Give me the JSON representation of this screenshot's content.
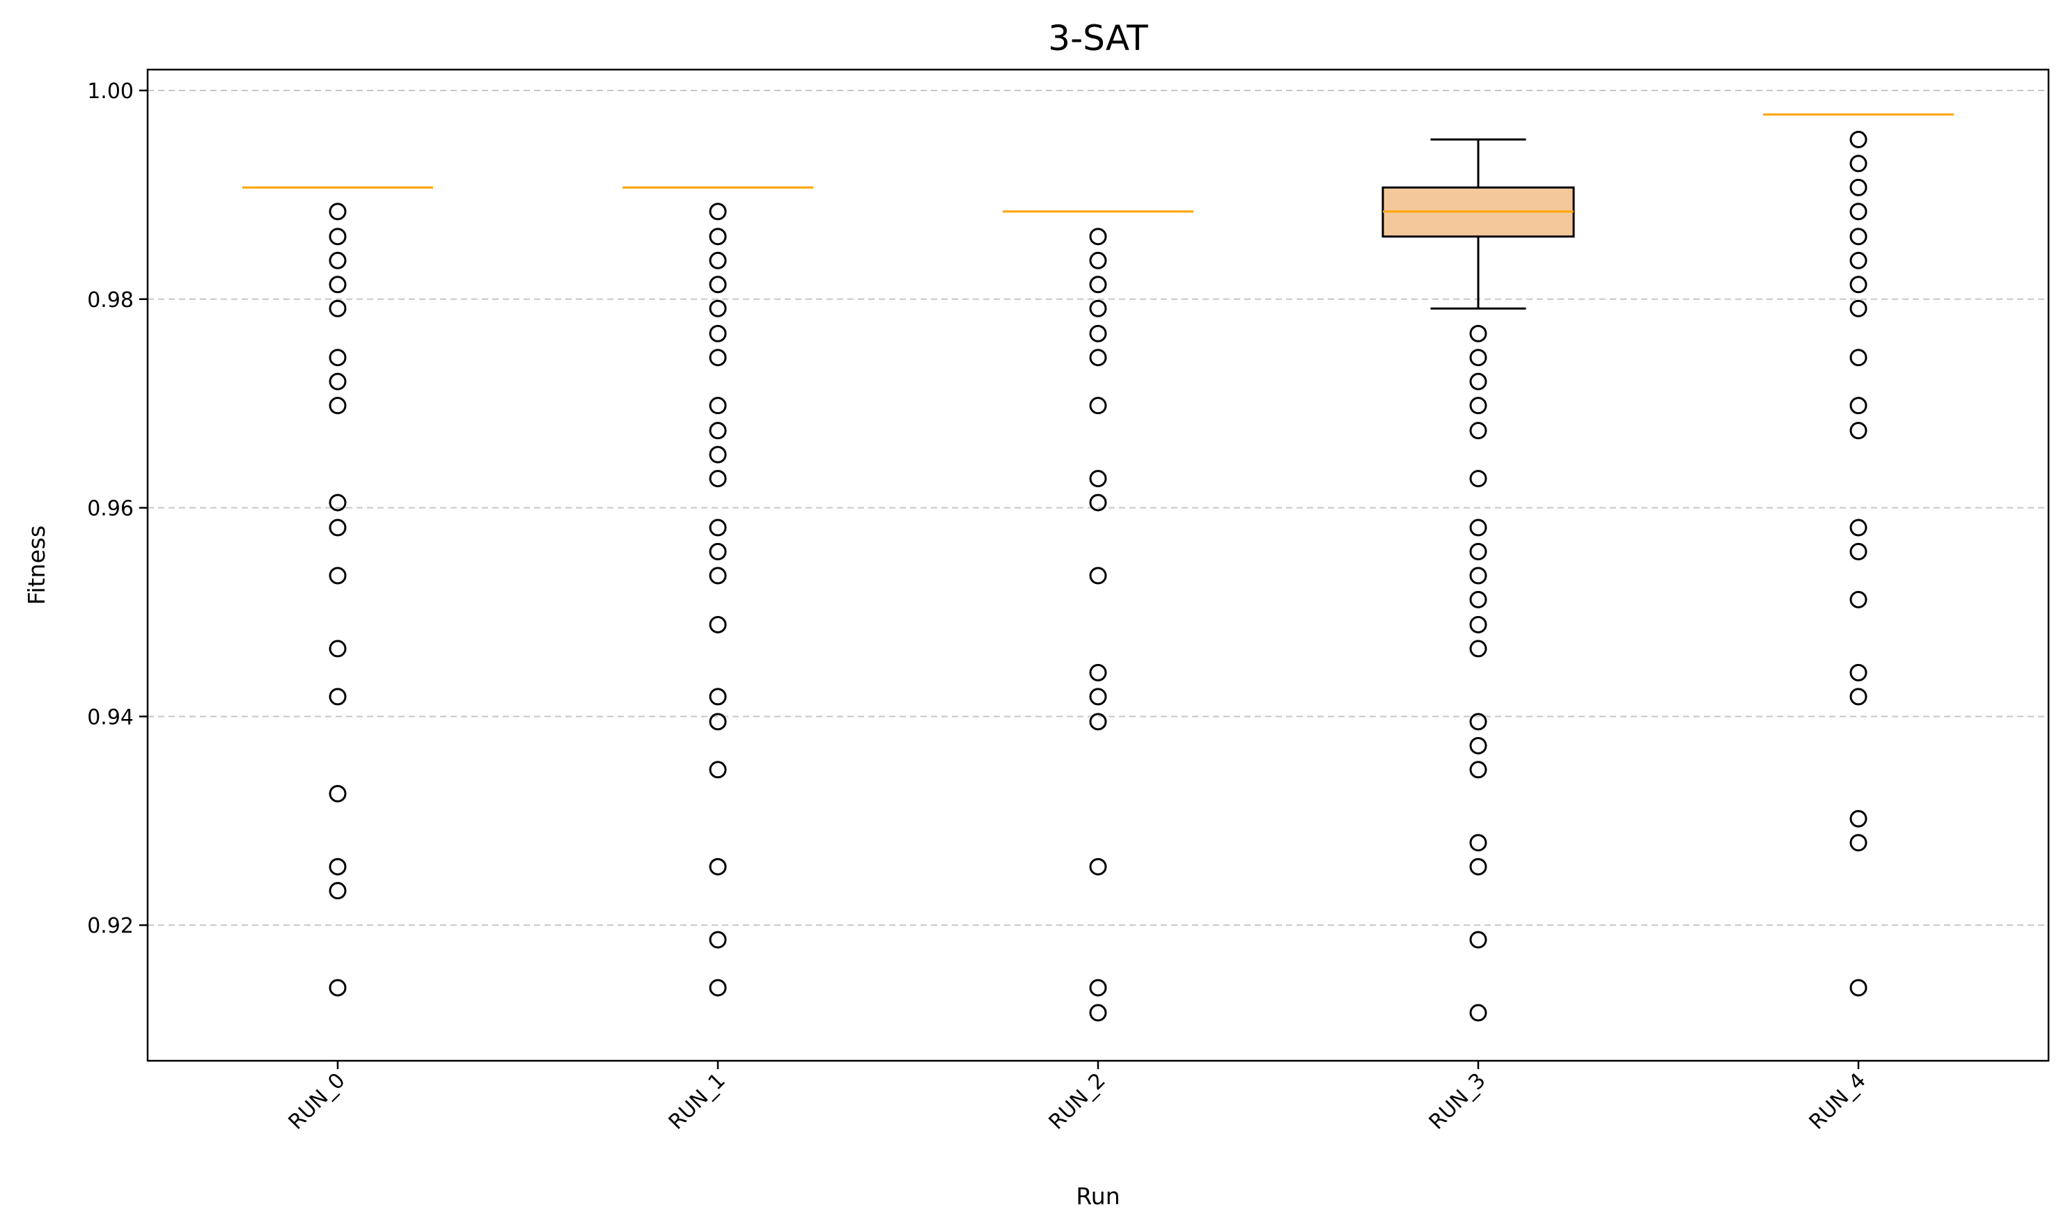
{
  "chart_data": {
    "type": "box",
    "title": "3-SAT",
    "xlabel": "Run",
    "ylabel": "Fitness",
    "ylim": [
      0.907,
      1.002
    ],
    "yticks": [
      0.92,
      0.94,
      0.96,
      0.98,
      1.0
    ],
    "ytick_labels": [
      "0.92",
      "0.94",
      "0.96",
      "0.98",
      "1.00"
    ],
    "grid": "y-dashed",
    "colors": {
      "box_fill": "#f5c89c",
      "median": "#ffa500",
      "outline": "#000000"
    },
    "categories": [
      "RUN_0",
      "RUN_1",
      "RUN_2",
      "RUN_3",
      "RUN_4"
    ],
    "boxes": [
      {
        "name": "RUN_0",
        "q1": 0.9907,
        "median": 0.9907,
        "q3": 0.9907,
        "whisker_low": 0.9907,
        "whisker_high": 0.9907,
        "fliers": [
          0.9884,
          0.986,
          0.9837,
          0.9814,
          0.9791,
          0.9744,
          0.9721,
          0.9698,
          0.9605,
          0.9581,
          0.9535,
          0.9465,
          0.9419,
          0.9326,
          0.9256,
          0.9233,
          0.914
        ]
      },
      {
        "name": "RUN_1",
        "q1": 0.9907,
        "median": 0.9907,
        "q3": 0.9907,
        "whisker_low": 0.9907,
        "whisker_high": 0.9907,
        "fliers": [
          0.9884,
          0.986,
          0.9837,
          0.9814,
          0.9791,
          0.9767,
          0.9744,
          0.9698,
          0.9674,
          0.9651,
          0.9628,
          0.9581,
          0.9558,
          0.9535,
          0.9488,
          0.9419,
          0.9395,
          0.9349,
          0.9256,
          0.9186,
          0.914
        ]
      },
      {
        "name": "RUN_2",
        "q1": 0.9884,
        "median": 0.9884,
        "q3": 0.9884,
        "whisker_low": 0.9884,
        "whisker_high": 0.9884,
        "fliers": [
          0.986,
          0.9837,
          0.9814,
          0.9791,
          0.9767,
          0.9744,
          0.9698,
          0.9628,
          0.9605,
          0.9535,
          0.9442,
          0.9419,
          0.9395,
          0.9256,
          0.914,
          0.9116
        ]
      },
      {
        "name": "RUN_3",
        "q1": 0.986,
        "median": 0.9884,
        "q3": 0.9907,
        "whisker_low": 0.9791,
        "whisker_high": 0.9953,
        "fliers": [
          0.9767,
          0.9744,
          0.9721,
          0.9698,
          0.9674,
          0.9628,
          0.9581,
          0.9558,
          0.9535,
          0.9512,
          0.9488,
          0.9465,
          0.9395,
          0.9372,
          0.9349,
          0.9279,
          0.9256,
          0.9186,
          0.9116
        ]
      },
      {
        "name": "RUN_4",
        "q1": 0.9977,
        "median": 0.9977,
        "q3": 0.9977,
        "whisker_low": 0.9977,
        "whisker_high": 0.9977,
        "fliers": [
          0.9953,
          0.993,
          0.9907,
          0.9884,
          0.986,
          0.9837,
          0.9814,
          0.9791,
          0.9744,
          0.9698,
          0.9674,
          0.9581,
          0.9558,
          0.9512,
          0.9442,
          0.9419,
          0.9302,
          0.9279,
          0.914
        ]
      }
    ]
  }
}
